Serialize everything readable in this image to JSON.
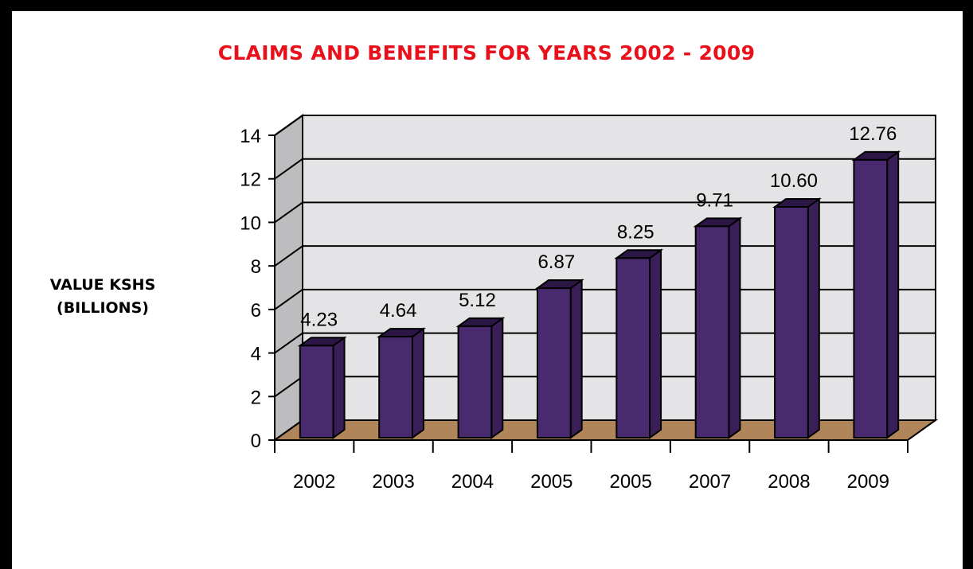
{
  "chart_data": {
    "type": "bar",
    "title": "CLAIMS AND BENEFITS FOR YEARS 2002 - 2009",
    "ylabel": [
      "VALUE KSHS",
      "(BILLIONS)"
    ],
    "xlabel": "",
    "categories": [
      "2002",
      "2003",
      "2004",
      "2005",
      "2005",
      "2007",
      "2008",
      "2009"
    ],
    "values": [
      4.23,
      4.64,
      5.12,
      6.87,
      8.25,
      9.71,
      10.6,
      12.76
    ],
    "value_labels": [
      "4.23",
      "4.64",
      "5.12",
      "6.87",
      "8.25",
      "9.71",
      "10.60",
      "12.76"
    ],
    "yticks": [
      "0",
      "2",
      "4",
      "6",
      "8",
      "10",
      "12",
      "14"
    ],
    "ylim": [
      0,
      14
    ],
    "grid": true,
    "three_d": true
  },
  "colors": {
    "title": "#e8111b",
    "bar_front": "#4a2a6e",
    "bar_side": "#3a1e58",
    "bar_top": "#2c1645",
    "floor": "#b0855a",
    "back_wall": "#e4e4e6",
    "side_wall": "#bdbdbf"
  }
}
